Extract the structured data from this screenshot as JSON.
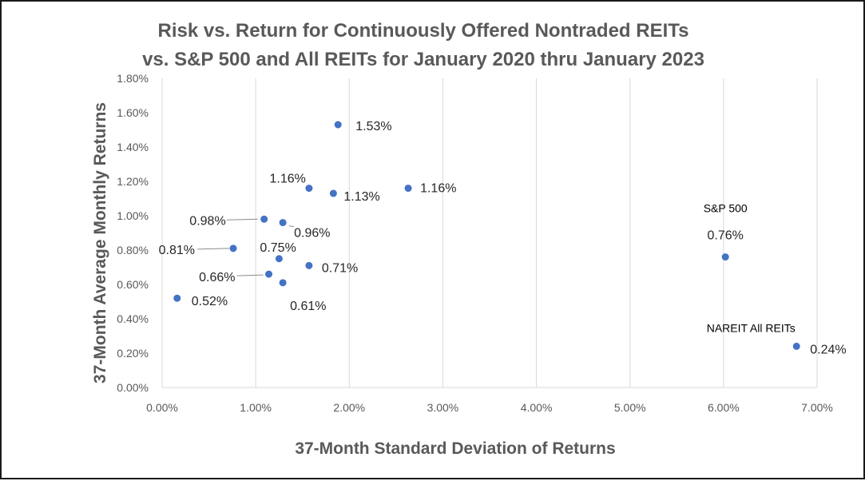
{
  "chart_data": {
    "type": "scatter",
    "title": "Risk vs. Return for Continuously Offered Nontraded REITs",
    "subtitle": "vs. S&P 500 and All REITs for January 2020 thru January 2023",
    "xlabel": "37-Month Standard Deviation of Returns",
    "ylabel": "37-Month Average Monthly Returns",
    "xlim": [
      0,
      7
    ],
    "ylim": [
      0,
      1.8
    ],
    "x_ticks": [
      "0.00%",
      "1.00%",
      "2.00%",
      "3.00%",
      "4.00%",
      "5.00%",
      "6.00%",
      "7.00%"
    ],
    "y_ticks": [
      "0.00%",
      "0.20%",
      "0.40%",
      "0.60%",
      "0.80%",
      "1.00%",
      "1.20%",
      "1.40%",
      "1.60%",
      "1.80%"
    ],
    "grid": "vertical",
    "legend": "none",
    "marker_color": "#4472c4",
    "points": [
      {
        "x": 1.88,
        "y": 1.53,
        "label": "1.53%"
      },
      {
        "x": 1.57,
        "y": 1.16,
        "label": "1.16%"
      },
      {
        "x": 1.83,
        "y": 1.13,
        "label": "1.13%"
      },
      {
        "x": 2.63,
        "y": 1.16,
        "label": "1.16%"
      },
      {
        "x": 1.09,
        "y": 0.98,
        "label": "0.98%"
      },
      {
        "x": 1.29,
        "y": 0.96,
        "label": "0.96%"
      },
      {
        "x": 0.76,
        "y": 0.81,
        "label": "0.81%"
      },
      {
        "x": 1.25,
        "y": 0.75,
        "label": "0.75%"
      },
      {
        "x": 1.57,
        "y": 0.71,
        "label": "0.71%"
      },
      {
        "x": 1.14,
        "y": 0.66,
        "label": "0.66%"
      },
      {
        "x": 1.29,
        "y": 0.61,
        "label": "0.61%"
      },
      {
        "x": 0.16,
        "y": 0.52,
        "label": "0.52%"
      },
      {
        "x": 6.02,
        "y": 0.76,
        "label": "0.76%",
        "series": "S&P 500"
      },
      {
        "x": 6.78,
        "y": 0.24,
        "label": "0.24%",
        "series": "NAREIT All REITs"
      }
    ]
  }
}
